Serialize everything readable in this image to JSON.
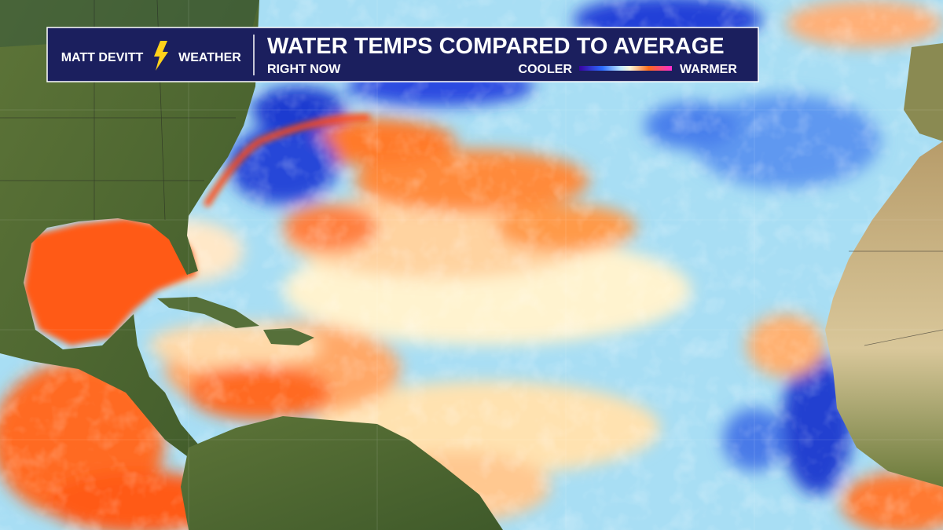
{
  "header": {
    "brand_left": "MATT DEVITT",
    "brand_right": "WEATHER",
    "title": "WATER TEMPS COMPARED TO AVERAGE",
    "subtitle": "RIGHT NOW",
    "legend": {
      "low_label": "COOLER",
      "high_label": "WARMER"
    }
  }
}
